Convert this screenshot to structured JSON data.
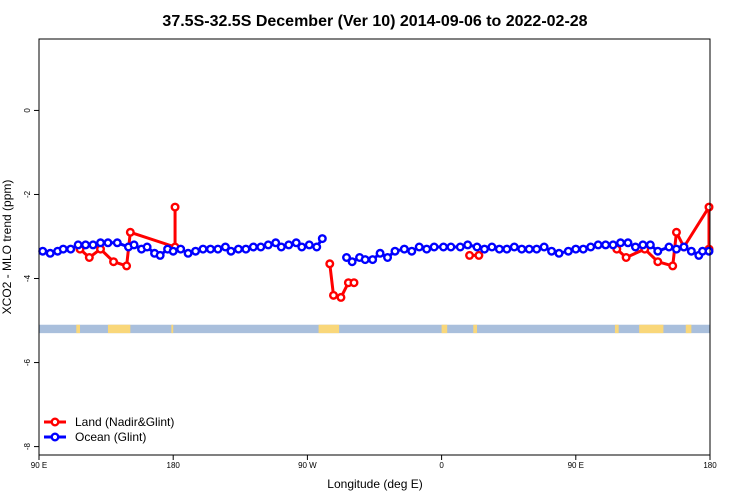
{
  "chart_data": {
    "type": "line",
    "title": "37.5S-32.5S December (Ver 10)   2014-09-06 to 2022-02-28",
    "xlabel": "Longitude (deg E)",
    "ylabel": "XCO2 - MLO trend (ppm)",
    "xlim": [
      90,
      450
    ],
    "ylim": [
      -8.2,
      1.7
    ],
    "x_ticks": [
      {
        "value": 90,
        "label": "90 E"
      },
      {
        "value": 162,
        "label": "180"
      },
      {
        "value": 234,
        "label": "90 W"
      },
      {
        "value": 306,
        "label": "0"
      },
      {
        "value": 378,
        "label": "90 E"
      },
      {
        "value": 450,
        "label": "180"
      }
    ],
    "y_ticks": [
      {
        "value": 0,
        "label": "0"
      },
      {
        "value": -2,
        "label": "-2"
      },
      {
        "value": -4,
        "label": "-4"
      },
      {
        "value": -6,
        "label": "-6"
      },
      {
        "value": -8,
        "label": "-8"
      }
    ],
    "map_strip": {
      "y_top": -5.1,
      "y_bottom": -5.3,
      "ocean_color": "#a9bfdc",
      "land_color": "#f9d77a",
      "land_segments": [
        [
          110,
          112
        ],
        [
          127,
          139
        ],
        [
          161,
          162
        ],
        [
          240,
          251
        ],
        [
          306,
          309
        ],
        [
          323,
          325
        ],
        [
          399,
          401
        ],
        [
          412,
          425
        ],
        [
          437,
          440
        ]
      ]
    },
    "series": [
      {
        "name": "Land (Nadir&Glint)",
        "color": "#ff0000",
        "x": [
          112,
          117,
          123,
          130,
          137,
          139,
          163,
          163
        ],
        "y": [
          -3.3,
          -3.5,
          -3.3,
          -3.6,
          -3.7,
          -2.9,
          -3.25,
          -2.3
        ]
      },
      {
        "name": "Land (Nadir&Glint)",
        "color": "#ff0000",
        "x": [
          246,
          248,
          252,
          256,
          259
        ],
        "y": [
          -3.65,
          -4.4,
          -4.45,
          -4.1,
          -4.1
        ]
      },
      {
        "name": "Land (Nadir&Glint)",
        "color": "#ff0000",
        "x": [
          321,
          326
        ],
        "y": [
          -3.45,
          -3.45
        ]
      },
      {
        "name": "Land (Nadir&Glint)",
        "color": "#ff0000",
        "x": [
          400,
          405,
          415,
          422,
          430,
          432,
          436,
          451,
          457
        ],
        "y": [
          -3.3,
          -3.5,
          -3.3,
          -3.6,
          -3.7,
          -2.9,
          -3.25,
          -2.3,
          -3.3
        ]
      },
      {
        "name": "Ocean (Glint)",
        "color": "#0000ff",
        "x": [
          92,
          96,
          100,
          103,
          107,
          111,
          115,
          119,
          123,
          127,
          132,
          138,
          141,
          145,
          148,
          152,
          155,
          159,
          162,
          166,
          170,
          174,
          178,
          182,
          186,
          190,
          193,
          197,
          201,
          205,
          209,
          213,
          217,
          220,
          224,
          228,
          231,
          235,
          239,
          242
        ],
        "y": [
          -3.35,
          -3.4,
          -3.35,
          -3.3,
          -3.3,
          -3.2,
          -3.2,
          -3.2,
          -3.15,
          -3.15,
          -3.15,
          -3.25,
          -3.2,
          -3.3,
          -3.25,
          -3.4,
          -3.45,
          -3.3,
          -3.35,
          -3.3,
          -3.4,
          -3.35,
          -3.3,
          -3.3,
          -3.3,
          -3.25,
          -3.35,
          -3.3,
          -3.3,
          -3.25,
          -3.25,
          -3.2,
          -3.15,
          -3.25,
          -3.2,
          -3.15,
          -3.25,
          -3.2,
          -3.25,
          -3.05
        ]
      },
      {
        "name": "Ocean (Glint)",
        "color": "#0000ff",
        "x": [
          255,
          258,
          262,
          265,
          269,
          273,
          277,
          281,
          286,
          290,
          294,
          298,
          302,
          307,
          311,
          316,
          320,
          325,
          329,
          333,
          337,
          341,
          345,
          349,
          353,
          357,
          361,
          365,
          369,
          374,
          378,
          382,
          386,
          390,
          394,
          398,
          402,
          406,
          410,
          414,
          418,
          422,
          428,
          432,
          436,
          440,
          444,
          446,
          450
        ],
        "y": [
          -3.5,
          -3.6,
          -3.5,
          -3.55,
          -3.55,
          -3.4,
          -3.5,
          -3.35,
          -3.3,
          -3.35,
          -3.25,
          -3.3,
          -3.25,
          -3.25,
          -3.25,
          -3.25,
          -3.2,
          -3.25,
          -3.3,
          -3.25,
          -3.3,
          -3.3,
          -3.25,
          -3.3,
          -3.3,
          -3.3,
          -3.25,
          -3.35,
          -3.4,
          -3.35,
          -3.3,
          -3.3,
          -3.25,
          -3.2,
          -3.2,
          -3.2,
          -3.15,
          -3.15,
          -3.25,
          -3.2,
          -3.2,
          -3.35,
          -3.25,
          -3.3,
          -3.25,
          -3.35,
          -3.45,
          -3.35,
          -3.35
        ]
      }
    ],
    "legend": {
      "position": "bottom-left",
      "entries": [
        {
          "label": "Land (Nadir&Glint)",
          "color": "#ff0000"
        },
        {
          "label": "Ocean (Glint)",
          "color": "#0000ff"
        }
      ]
    }
  }
}
